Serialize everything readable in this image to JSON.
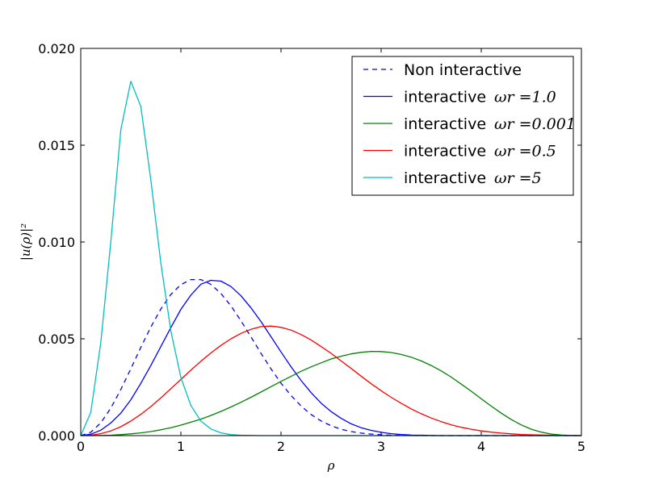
{
  "chart_data": {
    "type": "line",
    "xlabel": "ρ",
    "ylabel": "|u(ρ)|²",
    "xlim": [
      0,
      5
    ],
    "ylim": [
      0,
      0.02
    ],
    "x_ticks": [
      "0",
      "1",
      "2",
      "3",
      "4",
      "5"
    ],
    "y_ticks": [
      "0.000",
      "0.005",
      "0.010",
      "0.015",
      "0.020"
    ],
    "grid": false,
    "legend_position": "top-right",
    "x": [
      0,
      0.1,
      0.2,
      0.3,
      0.4,
      0.5,
      0.6,
      0.7,
      0.8,
      0.9,
      1.0,
      1.1,
      1.2,
      1.3,
      1.4,
      1.5,
      1.6,
      1.7,
      1.8,
      1.9,
      2.0,
      2.1,
      2.2,
      2.3,
      2.4,
      2.5,
      2.6,
      2.7,
      2.8,
      2.9,
      3.0,
      3.1,
      3.2,
      3.3,
      3.4,
      3.5,
      3.6,
      3.7,
      3.8,
      3.9,
      4.0,
      4.1,
      4.2,
      4.3,
      4.4,
      4.5,
      4.6,
      4.7,
      4.8,
      4.9,
      5.0
    ],
    "series": [
      {
        "name": "Non interactive",
        "legend_text": "Non interactive",
        "legend_math": "",
        "color": "#0000ff",
        "dashed": true,
        "values": [
          0,
          0.00017,
          0.00066,
          0.00142,
          0.00238,
          0.00345,
          0.00456,
          0.00561,
          0.00654,
          0.00729,
          0.0078,
          0.00806,
          0.00806,
          0.00781,
          0.00734,
          0.0067,
          0.00593,
          0.0051,
          0.00425,
          0.00345,
          0.00271,
          0.00207,
          0.00153,
          0.00109,
          0.00076,
          0.00051,
          0.00033,
          0.00021,
          0.00013,
          8e-05,
          4e-05,
          2e-05,
          1e-05,
          1e-05,
          0,
          0,
          0,
          0,
          0,
          0,
          0,
          0,
          0,
          0,
          0,
          0,
          0,
          0,
          0,
          0,
          0
        ]
      },
      {
        "name": "interactive ωr=1.0",
        "legend_text": "interactive",
        "legend_math": "ωr =1.0",
        "color": "#0000ff",
        "dashed": false,
        "values": [
          0,
          7e-05,
          0.00028,
          0.00065,
          0.00116,
          0.00185,
          0.0027,
          0.00362,
          0.0046,
          0.00558,
          0.00652,
          0.00726,
          0.00782,
          0.00802,
          0.00798,
          0.0077,
          0.00722,
          0.0066,
          0.00589,
          0.00511,
          0.00432,
          0.00356,
          0.00285,
          0.00222,
          0.00168,
          0.00124,
          0.00089,
          0.00061,
          0.00041,
          0.00027,
          0.00017,
          0.0001,
          6e-05,
          3e-05,
          2e-05,
          1e-05,
          0,
          0,
          0,
          0,
          0,
          0,
          0,
          0,
          0,
          0,
          0,
          0,
          0,
          0,
          0
        ]
      },
      {
        "name": "interactive ωr=0.001",
        "legend_text": "interactive",
        "legend_math": "ωr =0.001",
        "color": "#008000",
        "dashed": false,
        "values": [
          0,
          0,
          1e-05,
          2e-05,
          5e-05,
          9e-05,
          0.00014,
          0.00021,
          0.0003,
          0.00041,
          0.00054,
          0.00069,
          0.00085,
          0.00104,
          0.00125,
          0.00148,
          0.00172,
          0.00198,
          0.00225,
          0.00253,
          0.0028,
          0.00306,
          0.00332,
          0.00355,
          0.00376,
          0.00396,
          0.0041,
          0.00422,
          0.0043,
          0.00435,
          0.00434,
          0.00429,
          0.00419,
          0.00405,
          0.00386,
          0.00362,
          0.00334,
          0.00302,
          0.00266,
          0.00229,
          0.0019,
          0.00152,
          0.00116,
          0.00083,
          0.00055,
          0.00033,
          0.00018,
          8e-05,
          3e-05,
          1e-05,
          0
        ]
      },
      {
        "name": "interactive ωr=0.5",
        "legend_text": "interactive",
        "legend_math": "ωr =0.5",
        "color": "#ff0000",
        "dashed": false,
        "values": [
          0,
          2e-05,
          0.0001,
          0.00024,
          0.00046,
          0.00075,
          0.0011,
          0.0015,
          0.00195,
          0.00242,
          0.0029,
          0.00338,
          0.00384,
          0.00427,
          0.00466,
          0.005,
          0.00528,
          0.00549,
          0.00563,
          0.00566,
          0.00559,
          0.00545,
          0.00522,
          0.00494,
          0.0046,
          0.00425,
          0.00386,
          0.00347,
          0.00307,
          0.00268,
          0.00232,
          0.00198,
          0.00167,
          0.00138,
          0.00113,
          0.00091,
          0.00072,
          0.00056,
          0.00043,
          0.00033,
          0.00024,
          0.00018,
          0.00013,
          9e-05,
          6e-05,
          4e-05,
          3e-05,
          2e-05,
          1e-05,
          1e-05,
          0
        ]
      },
      {
        "name": "interactive ωr=5",
        "legend_text": "interactive",
        "legend_math": "ωr =5",
        "color": "#00bfbf",
        "dashed": false,
        "values": [
          0,
          0.0012,
          0.0048,
          0.01,
          0.0158,
          0.0183,
          0.017,
          0.0132,
          0.0089,
          0.0054,
          0.003,
          0.00155,
          0.00075,
          0.00034,
          0.00014,
          5e-05,
          2e-05,
          1e-05,
          0,
          0,
          0,
          0,
          0,
          0,
          0,
          0,
          0,
          0,
          0,
          0,
          0,
          0,
          0,
          0,
          0,
          0,
          0,
          0,
          0,
          0,
          0,
          0,
          0,
          0,
          0,
          0,
          0,
          0,
          0,
          0,
          0
        ]
      }
    ]
  }
}
